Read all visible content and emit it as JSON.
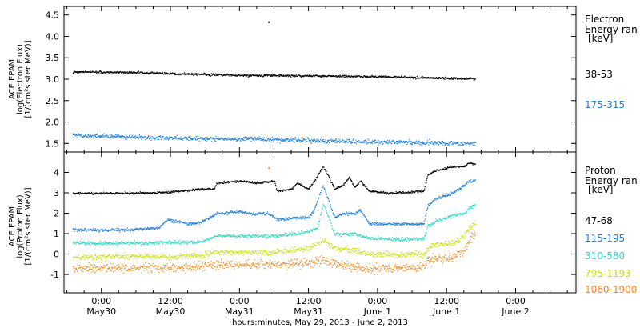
{
  "chart_data": [
    {
      "type": "scatter",
      "panel": "electron",
      "ylabel_lines": [
        "ACE EPAM",
        "log(Electron Flux)",
        "[1/(cm²s ster MeV)]"
      ],
      "ylim": [
        1.3,
        4.7
      ],
      "yticks": [
        1.5,
        2.0,
        2.5,
        3.0,
        3.5,
        4.0,
        4.5
      ],
      "ytick_labels": [
        "1.5",
        "2.0",
        "2.5",
        "3.0",
        "3.5",
        "4.0",
        "4.5"
      ],
      "legend_title_lines": [
        "Electron",
        "Energy ran",
        "[keV]"
      ],
      "series": [
        {
          "name": "38-53",
          "color": "#000000",
          "points": [
            [
              -5.0,
              3.18
            ],
            [
              4.0,
              3.17
            ],
            [
              12.0,
              3.14
            ],
            [
              18.0,
              3.12
            ],
            [
              24.0,
              3.1
            ],
            [
              30.0,
              3.09
            ],
            [
              36.0,
              3.09
            ],
            [
              42.0,
              3.08
            ],
            [
              48.0,
              3.07
            ],
            [
              54.0,
              3.05
            ],
            [
              60.0,
              3.03
            ],
            [
              65.0,
              3.02
            ]
          ],
          "outliers": [
            [
              29.0,
              4.35
            ]
          ]
        },
        {
          "name": "175-315",
          "color": "#1f7fd9",
          "points": [
            [
              -5.0,
              1.7
            ],
            [
              4.0,
              1.66
            ],
            [
              12.0,
              1.64
            ],
            [
              18.0,
              1.62
            ],
            [
              24.0,
              1.61
            ],
            [
              30.0,
              1.6
            ],
            [
              36.0,
              1.58
            ],
            [
              42.0,
              1.56
            ],
            [
              48.0,
              1.55
            ],
            [
              54.0,
              1.53
            ],
            [
              60.0,
              1.52
            ],
            [
              65.0,
              1.5
            ]
          ]
        }
      ]
    },
    {
      "type": "scatter",
      "panel": "proton",
      "ylabel_lines": [
        "ACE EPAM",
        "log(Proton Flux)",
        "[1/(cm²s ster MeV)]"
      ],
      "ylim": [
        -1.9,
        5.0
      ],
      "yticks": [
        -1,
        0,
        1,
        2,
        3,
        4
      ],
      "ytick_labels": [
        "-1",
        "0",
        "1",
        "2",
        "3",
        "4"
      ],
      "legend_title_lines": [
        "Proton",
        "Energy ran",
        "[keV]"
      ],
      "series": [
        {
          "name": "47-68",
          "color": "#000000",
          "points": [
            [
              -5.0,
              3.0
            ],
            [
              5.0,
              3.0
            ],
            [
              12.0,
              3.05
            ],
            [
              17.0,
              3.2
            ],
            [
              19.5,
              3.2
            ],
            [
              20.0,
              3.5
            ],
            [
              24.0,
              3.6
            ],
            [
              27.0,
              3.5
            ],
            [
              30.0,
              3.6
            ],
            [
              30.5,
              3.1
            ],
            [
              33.0,
              3.2
            ],
            [
              34.0,
              3.5
            ],
            [
              36.0,
              3.2
            ],
            [
              37.0,
              3.6
            ],
            [
              38.5,
              4.3
            ],
            [
              39.5,
              3.8
            ],
            [
              40.5,
              3.2
            ],
            [
              42.0,
              3.4
            ],
            [
              43.0,
              3.8
            ],
            [
              44.0,
              3.3
            ],
            [
              45.0,
              3.6
            ],
            [
              46.5,
              3.1
            ],
            [
              50.0,
              3.0
            ],
            [
              56.0,
              3.1
            ],
            [
              56.7,
              3.9
            ],
            [
              58.0,
              4.1
            ],
            [
              61.0,
              4.3
            ],
            [
              63.0,
              4.3
            ],
            [
              64.0,
              4.5
            ],
            [
              65.0,
              4.4
            ]
          ]
        },
        {
          "name": "115-195",
          "color": "#1f7fd9",
          "points": [
            [
              -5.0,
              1.2
            ],
            [
              5.0,
              1.2
            ],
            [
              10.0,
              1.3
            ],
            [
              11.5,
              1.7
            ],
            [
              15.0,
              1.5
            ],
            [
              17.0,
              1.55
            ],
            [
              20.0,
              2.0
            ],
            [
              24.0,
              2.1
            ],
            [
              26.0,
              2.0
            ],
            [
              29.0,
              2.0
            ],
            [
              30.5,
              1.7
            ],
            [
              34.0,
              1.8
            ],
            [
              36.0,
              1.8
            ],
            [
              37.0,
              2.2
            ],
            [
              38.5,
              3.4
            ],
            [
              39.5,
              2.6
            ],
            [
              40.5,
              1.8
            ],
            [
              42.0,
              2.0
            ],
            [
              44.0,
              2.0
            ],
            [
              45.0,
              2.2
            ],
            [
              46.5,
              1.5
            ],
            [
              50.0,
              1.5
            ],
            [
              56.0,
              1.5
            ],
            [
              56.7,
              2.4
            ],
            [
              58.0,
              2.7
            ],
            [
              61.0,
              3.0
            ],
            [
              63.0,
              3.4
            ],
            [
              64.0,
              3.6
            ],
            [
              65.0,
              3.65
            ]
          ]
        },
        {
          "name": "310-580",
          "color": "#33d6c4",
          "points": [
            [
              -5.0,
              0.55
            ],
            [
              5.0,
              0.55
            ],
            [
              12.0,
              0.6
            ],
            [
              17.0,
              0.6
            ],
            [
              20.0,
              0.9
            ],
            [
              24.0,
              0.9
            ],
            [
              30.0,
              0.9
            ],
            [
              33.0,
              1.0
            ],
            [
              36.0,
              1.1
            ],
            [
              37.5,
              1.3
            ],
            [
              38.5,
              2.5
            ],
            [
              39.5,
              1.8
            ],
            [
              40.5,
              1.0
            ],
            [
              44.0,
              1.0
            ],
            [
              46.5,
              0.8
            ],
            [
              50.0,
              0.75
            ],
            [
              56.0,
              0.75
            ],
            [
              56.7,
              1.4
            ],
            [
              58.0,
              1.6
            ],
            [
              61.0,
              1.9
            ],
            [
              63.0,
              2.0
            ],
            [
              64.0,
              2.3
            ],
            [
              65.0,
              2.4
            ]
          ]
        },
        {
          "name": "795-1193",
          "color": "#c8e010",
          "points": [
            [
              -5.0,
              -0.15
            ],
            [
              5.0,
              -0.1
            ],
            [
              12.0,
              -0.1
            ],
            [
              17.0,
              -0.05
            ],
            [
              20.0,
              0.1
            ],
            [
              24.0,
              0.1
            ],
            [
              30.0,
              0.1
            ],
            [
              36.0,
              0.3
            ],
            [
              38.5,
              0.7
            ],
            [
              40.5,
              0.3
            ],
            [
              44.0,
              0.2
            ],
            [
              46.5,
              0.0
            ],
            [
              50.0,
              0.0
            ],
            [
              56.0,
              0.0
            ],
            [
              56.7,
              0.3
            ],
            [
              58.0,
              0.5
            ],
            [
              61.0,
              0.5
            ],
            [
              63.0,
              0.9
            ],
            [
              64.0,
              1.3
            ],
            [
              65.0,
              1.5
            ]
          ]
        },
        {
          "name": "1060-1900",
          "color": "#f08a1e",
          "points": [
            [
              -5.0,
              -0.7
            ],
            [
              5.0,
              -0.65
            ],
            [
              12.0,
              -0.65
            ],
            [
              17.0,
              -0.6
            ],
            [
              20.0,
              -0.5
            ],
            [
              24.0,
              -0.5
            ],
            [
              30.0,
              -0.5
            ],
            [
              36.0,
              -0.4
            ],
            [
              38.5,
              -0.3
            ],
            [
              40.5,
              -0.45
            ],
            [
              44.0,
              -0.6
            ],
            [
              46.5,
              -0.7
            ],
            [
              50.0,
              -0.7
            ],
            [
              56.0,
              -0.65
            ],
            [
              56.7,
              -0.3
            ],
            [
              58.0,
              -0.2
            ],
            [
              61.0,
              -0.15
            ],
            [
              63.0,
              0.1
            ],
            [
              64.0,
              0.7
            ],
            [
              65.0,
              0.95
            ]
          ],
          "outliers": [
            [
              29.0,
              4.25
            ]
          ]
        }
      ]
    }
  ],
  "xaxis": {
    "xlim": [
      -6.5,
      82.5
    ],
    "ticks": [
      {
        "hours": 0,
        "time": "0:00",
        "date": "May30"
      },
      {
        "hours": 12,
        "time": "12:00",
        "date": "May30"
      },
      {
        "hours": 24,
        "time": "0:00",
        "date": "May31"
      },
      {
        "hours": 36,
        "time": "12:00",
        "date": "May31"
      },
      {
        "hours": 48,
        "time": "0:00",
        "date": "June 1"
      },
      {
        "hours": 60,
        "time": "12:00",
        "date": "June 1"
      },
      {
        "hours": 72,
        "time": "0:00",
        "date": "June 2"
      }
    ],
    "label": "hours:minutes, May 29, 2013 - June  2, 2013"
  }
}
